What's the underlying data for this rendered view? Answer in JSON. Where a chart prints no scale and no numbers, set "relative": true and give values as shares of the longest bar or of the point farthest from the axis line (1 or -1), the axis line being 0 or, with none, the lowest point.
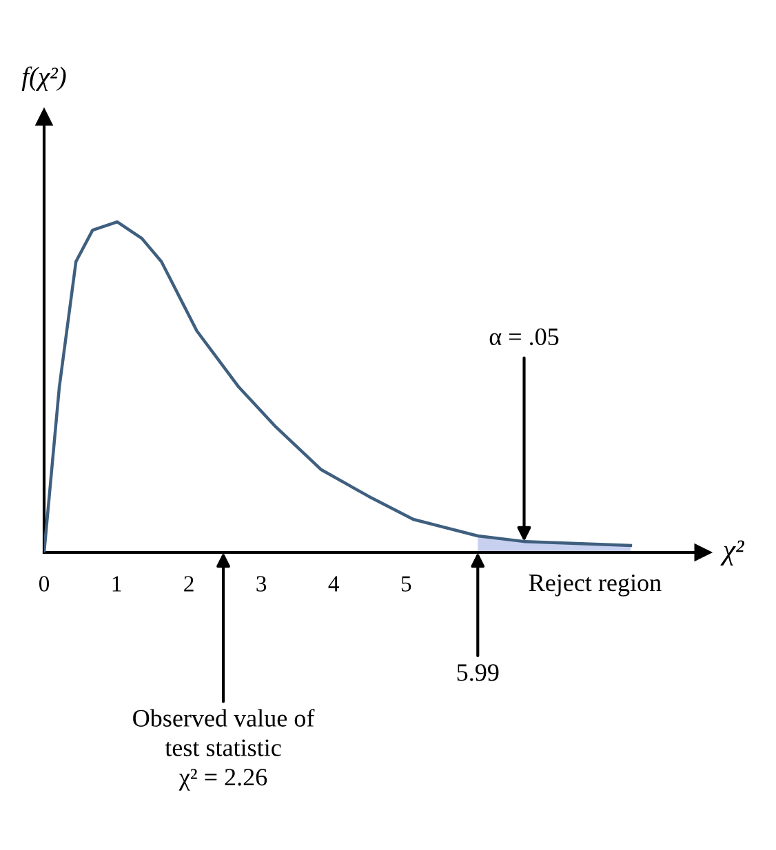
{
  "chart_data": {
    "type": "line",
    "relative": true,
    "xlabel": "χ²",
    "ylabel": "f(χ²)",
    "xlim": [
      0,
      9.1
    ],
    "xticks": [
      0,
      1,
      2,
      3,
      4,
      5
    ],
    "marker": "none",
    "line_style": "solid",
    "grid": false,
    "legend": false,
    "series": [
      {
        "color": "#3f5f7f",
        "x": [
          0,
          0.21,
          0.44,
          0.67,
          1.01,
          1.35,
          1.62,
          2.11,
          2.69,
          3.2,
          3.83,
          4.48,
          5.1,
          5.99,
          6.63,
          8.1
        ],
        "values": [
          0,
          0.5,
          0.88,
          0.975,
          1,
          0.95,
          0.88,
          0.67,
          0.5,
          0.38,
          0.25,
          0.17,
          0.1,
          0.05,
          0.033,
          0.021
        ]
      },
      {
        "type": "area",
        "color": "#c8d0f0",
        "x": [
          5.99,
          6.63,
          8.1
        ],
        "values": [
          0.05,
          0.033,
          0.021
        ]
      }
    ],
    "annotations": [
      {
        "text": "α = .05",
        "x": 6.63,
        "y": 0.033
      },
      "Reject region",
      {
        "text": "5.99",
        "x": 5.99,
        "y": 0
      },
      "Observed value of\ntest statistic\nχ² = 2.26"
    ]
  }
}
